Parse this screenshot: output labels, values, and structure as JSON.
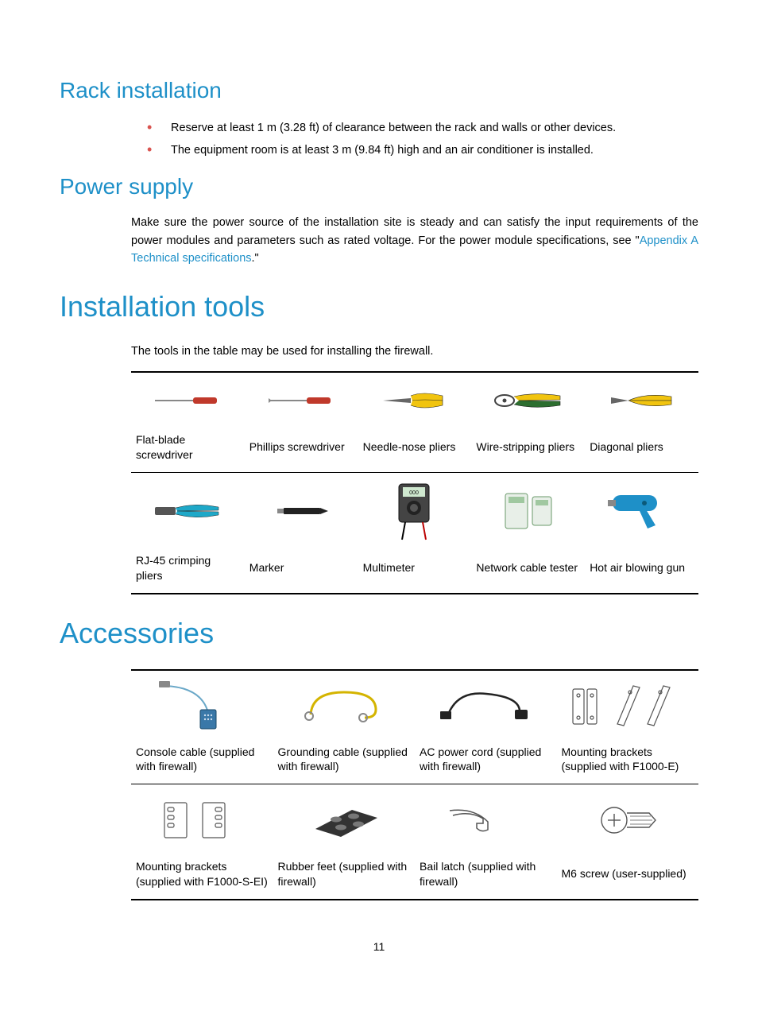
{
  "colors": {
    "heading": "#1e90c8",
    "link": "#1e90c8",
    "bullet": "#d9534f",
    "text": "#000000",
    "border": "#000000",
    "background": "#ffffff"
  },
  "fonts": {
    "h1_size": 36,
    "h2_size": 28,
    "body_size": 14.5,
    "table_size": 14,
    "heading_weight": 300
  },
  "sections": {
    "rack": {
      "title": "Rack installation",
      "bullets": [
        "Reserve at least 1 m (3.28 ft) of clearance between the rack and walls or other devices.",
        "The equipment room is at least 3 m (9.84 ft) high and an air conditioner is installed."
      ]
    },
    "power": {
      "title": "Power supply",
      "text_before": "Make sure the power source of the installation site is steady and can satisfy the input requirements of the power modules and parameters such as rated voltage. For the power module specifications, see \"",
      "link_text": "Appendix A Technical specifications",
      "text_after": ".\""
    },
    "tools": {
      "title": "Installation tools",
      "intro": "The tools in the table may be used for installing the firewall.",
      "row1": [
        {
          "label": "Flat-blade screwdriver",
          "icon": "flat-screwdriver"
        },
        {
          "label": "Phillips screwdriver",
          "icon": "phillips-screwdriver"
        },
        {
          "label": "Needle-nose pliers",
          "icon": "needle-nose-pliers"
        },
        {
          "label": "Wire-stripping pliers",
          "icon": "wire-stripping-pliers"
        },
        {
          "label": "Diagonal pliers",
          "icon": "diagonal-pliers"
        }
      ],
      "row2": [
        {
          "label": "RJ-45 crimping pliers",
          "icon": "crimping-pliers"
        },
        {
          "label": "Marker",
          "icon": "marker"
        },
        {
          "label": "Multimeter",
          "icon": "multimeter"
        },
        {
          "label": "Network cable tester",
          "icon": "cable-tester"
        },
        {
          "label": "Hot air blowing gun",
          "icon": "hot-air-gun"
        }
      ]
    },
    "accessories": {
      "title": "Accessories",
      "row1": [
        {
          "label": "Console cable (supplied with firewall)",
          "icon": "console-cable"
        },
        {
          "label": "Grounding cable (supplied with firewall)",
          "icon": "grounding-cable"
        },
        {
          "label": "AC power cord (supplied with firewall)",
          "icon": "power-cord"
        },
        {
          "label": "Mounting brackets (supplied with F1000-E)",
          "icon": "brackets-f1000e"
        }
      ],
      "row2": [
        {
          "label": "Mounting brackets (supplied with F1000-S-EI)",
          "icon": "brackets-f1000sei"
        },
        {
          "label": "Rubber feet (supplied with firewall)",
          "icon": "rubber-feet"
        },
        {
          "label": "Bail latch (supplied with firewall)",
          "icon": "bail-latch"
        },
        {
          "label": "M6 screw (user-supplied)",
          "icon": "m6-screw"
        }
      ]
    }
  },
  "page_number": "11"
}
